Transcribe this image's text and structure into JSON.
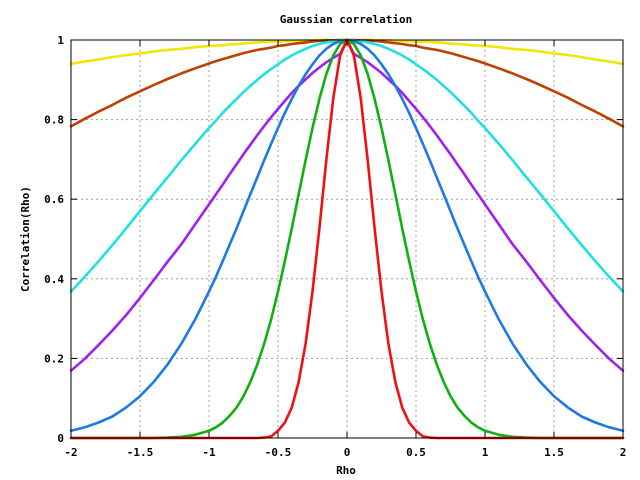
{
  "chart_data": {
    "type": "line",
    "title": "Gaussian correlation",
    "xlabel": "Rho",
    "ylabel": "Correlation(Rho)",
    "xlim": [
      -2,
      2
    ],
    "ylim": [
      0,
      1
    ],
    "x_ticks": [
      -2,
      -1.5,
      -1,
      -0.5,
      0,
      0.5,
      1,
      1.5,
      2
    ],
    "x_tick_labels": [
      "-2",
      "-1.5",
      "-1",
      "-0.5",
      "0",
      "0.5",
      "1",
      "1.5",
      "2"
    ],
    "y_ticks": [
      0,
      0.2,
      0.4,
      0.6,
      0.8,
      1
    ],
    "y_tick_labels": [
      "0",
      "0.2",
      "0.4",
      "0.6",
      "0.8",
      "1"
    ],
    "grid": true,
    "legend": "none",
    "x": [
      -2.0,
      -1.9,
      -1.8,
      -1.7,
      -1.6,
      -1.5,
      -1.4,
      -1.3,
      -1.2,
      -1.1,
      -1.0,
      -0.95,
      -0.9,
      -0.85,
      -0.8,
      -0.75,
      -0.7,
      -0.65,
      -0.6,
      -0.55,
      -0.5,
      -0.45,
      -0.4,
      -0.35,
      -0.3,
      -0.25,
      -0.2,
      -0.15,
      -0.1,
      -0.05,
      0.0,
      0.05,
      0.1,
      0.15,
      0.2,
      0.25,
      0.3,
      0.35,
      0.4,
      0.45,
      0.5,
      0.55,
      0.6,
      0.65,
      0.7,
      0.75,
      0.8,
      0.85,
      0.9,
      0.95,
      1.0,
      1.1,
      1.2,
      1.3,
      1.4,
      1.5,
      1.6,
      1.7,
      1.8,
      1.9,
      2.0
    ],
    "series": [
      {
        "color": "#f0e600",
        "values": [
          0.94,
          0.946,
          0.951,
          0.957,
          0.962,
          0.966,
          0.971,
          0.975,
          0.978,
          0.982,
          0.985,
          0.986,
          0.987,
          0.989,
          0.99,
          0.991,
          0.993,
          0.994,
          0.995,
          0.996,
          0.996,
          0.997,
          0.998,
          0.998,
          0.999,
          0.999,
          1.0,
          1.0,
          1.0,
          1.0,
          1.0,
          1.0,
          1.0,
          1.0,
          1.0,
          0.999,
          0.999,
          0.998,
          0.998,
          0.997,
          0.996,
          0.996,
          0.995,
          0.994,
          0.993,
          0.991,
          0.99,
          0.989,
          0.987,
          0.986,
          0.985,
          0.982,
          0.978,
          0.975,
          0.971,
          0.966,
          0.962,
          0.957,
          0.951,
          0.946,
          0.94
        ]
      },
      {
        "color": "#c04000",
        "values": [
          0.783,
          0.802,
          0.82,
          0.837,
          0.855,
          0.871,
          0.887,
          0.902,
          0.916,
          0.929,
          0.941,
          0.947,
          0.952,
          0.957,
          0.962,
          0.967,
          0.971,
          0.975,
          0.978,
          0.981,
          0.985,
          0.987,
          0.99,
          0.992,
          0.994,
          0.996,
          0.998,
          0.999,
          0.999,
          1.0,
          1.0,
          1.0,
          0.999,
          0.999,
          0.998,
          0.996,
          0.994,
          0.992,
          0.99,
          0.987,
          0.985,
          0.981,
          0.978,
          0.975,
          0.971,
          0.967,
          0.962,
          0.957,
          0.952,
          0.947,
          0.941,
          0.929,
          0.916,
          0.902,
          0.887,
          0.871,
          0.855,
          0.837,
          0.82,
          0.802,
          0.783
        ]
      },
      {
        "color": "#20e0e0",
        "values": [
          0.368,
          0.405,
          0.444,
          0.485,
          0.527,
          0.57,
          0.613,
          0.655,
          0.698,
          0.739,
          0.779,
          0.797,
          0.817,
          0.835,
          0.852,
          0.869,
          0.885,
          0.9,
          0.914,
          0.927,
          0.939,
          0.951,
          0.961,
          0.97,
          0.978,
          0.985,
          0.99,
          0.994,
          0.997,
          0.999,
          1.0,
          0.999,
          0.997,
          0.994,
          0.99,
          0.985,
          0.978,
          0.97,
          0.961,
          0.951,
          0.939,
          0.927,
          0.914,
          0.9,
          0.885,
          0.869,
          0.852,
          0.835,
          0.817,
          0.797,
          0.779,
          0.739,
          0.698,
          0.655,
          0.613,
          0.57,
          0.527,
          0.485,
          0.444,
          0.405,
          0.368
        ]
      },
      {
        "color": "#a020f0",
        "values": [
          0.169,
          0.199,
          0.234,
          0.27,
          0.309,
          0.352,
          0.397,
          0.443,
          0.487,
          0.537,
          0.587,
          0.612,
          0.637,
          0.663,
          0.688,
          0.713,
          0.737,
          0.761,
          0.784,
          0.806,
          0.827,
          0.847,
          0.867,
          0.885,
          0.901,
          0.917,
          0.931,
          0.944,
          0.955,
          0.965,
          1.0,
          0.965,
          0.955,
          0.944,
          0.931,
          0.917,
          0.901,
          0.885,
          0.867,
          0.847,
          0.827,
          0.806,
          0.784,
          0.761,
          0.737,
          0.713,
          0.688,
          0.663,
          0.637,
          0.612,
          0.587,
          0.537,
          0.487,
          0.443,
          0.397,
          0.352,
          0.309,
          0.27,
          0.234,
          0.199,
          0.169
        ]
      },
      {
        "color": "#1e78e6",
        "values": [
          0.018,
          0.027,
          0.039,
          0.054,
          0.077,
          0.105,
          0.141,
          0.185,
          0.237,
          0.298,
          0.368,
          0.405,
          0.445,
          0.486,
          0.527,
          0.57,
          0.613,
          0.655,
          0.698,
          0.739,
          0.779,
          0.817,
          0.852,
          0.885,
          0.914,
          0.939,
          0.961,
          0.978,
          0.99,
          0.997,
          1.0,
          0.997,
          0.99,
          0.978,
          0.961,
          0.939,
          0.914,
          0.885,
          0.852,
          0.817,
          0.779,
          0.739,
          0.698,
          0.655,
          0.613,
          0.57,
          0.527,
          0.486,
          0.445,
          0.405,
          0.368,
          0.298,
          0.237,
          0.185,
          0.141,
          0.105,
          0.077,
          0.054,
          0.039,
          0.027,
          0.018
        ]
      },
      {
        "color": "#10b010",
        "values": [
          0.0,
          0.0,
          0.0,
          0.0,
          0.0,
          0.0,
          0.0,
          0.001,
          0.003,
          0.008,
          0.018,
          0.027,
          0.039,
          0.056,
          0.077,
          0.105,
          0.141,
          0.185,
          0.237,
          0.298,
          0.368,
          0.445,
          0.527,
          0.613,
          0.698,
          0.779,
          0.852,
          0.914,
          0.961,
          0.99,
          1.0,
          0.99,
          0.961,
          0.914,
          0.852,
          0.779,
          0.698,
          0.613,
          0.527,
          0.445,
          0.368,
          0.298,
          0.237,
          0.185,
          0.141,
          0.105,
          0.077,
          0.056,
          0.039,
          0.027,
          0.018,
          0.008,
          0.003,
          0.001,
          0.0,
          0.0,
          0.0,
          0.0,
          0.0,
          0.0,
          0.0
        ]
      },
      {
        "color": "#f01010",
        "values": [
          0.0,
          0.0,
          0.0,
          0.0,
          0.0,
          0.0,
          0.0,
          0.0,
          0.0,
          0.0,
          0.0,
          0.0,
          0.0,
          0.0,
          0.0,
          0.0,
          0.0,
          0.0,
          0.001,
          0.004,
          0.018,
          0.039,
          0.077,
          0.141,
          0.237,
          0.368,
          0.527,
          0.698,
          0.852,
          0.961,
          1.0,
          0.961,
          0.852,
          0.698,
          0.527,
          0.368,
          0.237,
          0.141,
          0.077,
          0.039,
          0.018,
          0.004,
          0.001,
          0.0,
          0.0,
          0.0,
          0.0,
          0.0,
          0.0,
          0.0,
          0.0,
          0.0,
          0.0,
          0.0,
          0.0,
          0.0,
          0.0,
          0.0,
          0.0,
          0.0,
          0.0
        ]
      }
    ]
  }
}
